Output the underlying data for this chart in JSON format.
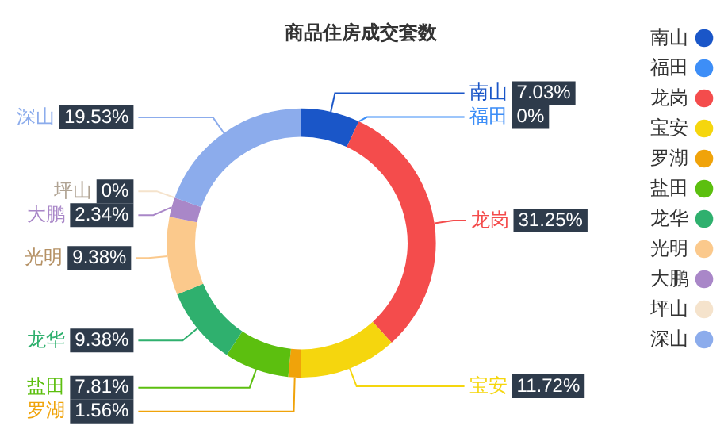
{
  "chart_data": {
    "type": "donut",
    "title": "商品住房成交套数",
    "categories": [
      "南山",
      "福田",
      "龙岗",
      "宝安",
      "罗湖",
      "盐田",
      "龙华",
      "光明",
      "大鹏",
      "坪山",
      "深山"
    ],
    "values": [
      7.03,
      0,
      31.25,
      11.72,
      1.56,
      7.81,
      9.38,
      9.38,
      2.34,
      0,
      19.53
    ],
    "value_labels": [
      "7.03%",
      "0%",
      "31.25%",
      "11.72%",
      "1.56%",
      "7.81%",
      "9.38%",
      "9.38%",
      "2.34%",
      "0%",
      "19.53%"
    ],
    "colors": [
      "#1a56c8",
      "#3d8ef7",
      "#f44c4c",
      "#f5d60e",
      "#f0a30a",
      "#5cbf0f",
      "#2fb06e",
      "#fbc98c",
      "#a987c8",
      "#f5e3cc",
      "#8cacec"
    ],
    "legend": "right"
  }
}
